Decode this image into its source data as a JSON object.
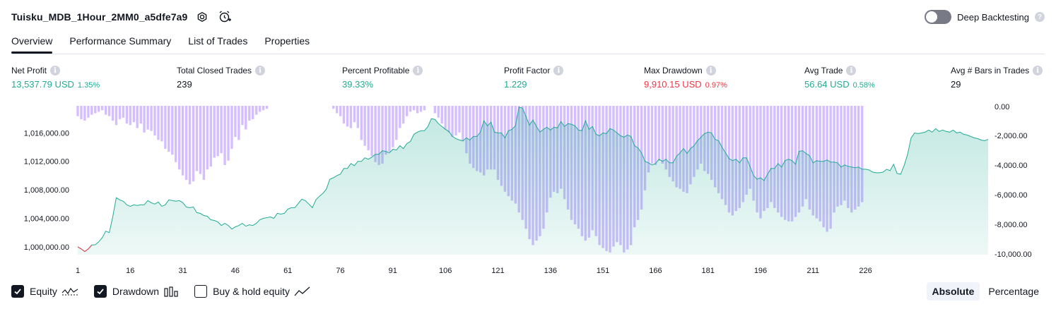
{
  "header": {
    "strategy_name": "Tuisku_MDB_1Hour_2MM0_a5dfe7a9",
    "settings_icon": "gear-icon",
    "alert_icon": "alarm-add-icon"
  },
  "deep_backtesting": {
    "label": "Deep Backtesting",
    "enabled": false,
    "help_icon": "question-icon"
  },
  "tabs": [
    {
      "label": "Overview",
      "active": true
    },
    {
      "label": "Performance Summary",
      "active": false
    },
    {
      "label": "List of Trades",
      "active": false
    },
    {
      "label": "Properties",
      "active": false
    }
  ],
  "metrics": [
    {
      "label": "Net Profit",
      "value": "13,537.79 USD",
      "pct": "1.35%",
      "color": "green"
    },
    {
      "label": "Total Closed Trades",
      "value": "239",
      "pct": "",
      "color": "neutral"
    },
    {
      "label": "Percent Profitable",
      "value": "39.33%",
      "pct": "",
      "color": "green"
    },
    {
      "label": "Profit Factor",
      "value": "1.229",
      "pct": "",
      "color": "green"
    },
    {
      "label": "Max Drawdown",
      "value": "9,910.15 USD",
      "pct": "0.97%",
      "color": "red"
    },
    {
      "label": "Avg Trade",
      "value": "56.64 USD",
      "pct": "0.58%",
      "color": "green"
    },
    {
      "label": "Avg # Bars in Trades",
      "value": "29",
      "pct": "",
      "color": "neutral"
    }
  ],
  "legend": {
    "equity": {
      "label": "Equity",
      "checked": true
    },
    "drawdown": {
      "label": "Drawdown",
      "checked": true
    },
    "buy_hold": {
      "label": "Buy & hold equity",
      "checked": false
    }
  },
  "view_mode": {
    "absolute": "Absolute",
    "percentage": "Percentage",
    "selected": "Absolute"
  },
  "chart_data": {
    "type": "area",
    "colors": {
      "equity": "#22ab94",
      "equity_loss": "#f23645",
      "drawdown": "#b388ff"
    },
    "x_ticks": [
      "1",
      "16",
      "31",
      "46",
      "61",
      "76",
      "91",
      "106",
      "121",
      "136",
      "151",
      "166",
      "181",
      "196",
      "211",
      "226"
    ],
    "y_left": {
      "ticks": [
        "1,016,000.00",
        "1,012,000.00",
        "1,008,000.00",
        "1,004,000.00",
        "1,000,000.00"
      ],
      "range": [
        999000,
        1019700
      ]
    },
    "y_right": {
      "ticks": [
        "0.00",
        "-2,000.00",
        "-4,000.00",
        "-6,000.00",
        "-8,000.00",
        "-10,000.00"
      ],
      "range": [
        -10000,
        0
      ]
    },
    "series": [
      {
        "name": "Equity",
        "type": "area",
        "x_start": 1,
        "values": [
          1000000,
          999700,
          999350,
          999700,
          1000250,
          1000300,
          1000700,
          1001300,
          1002200,
          1002000,
          1004200,
          1006900,
          1006600,
          1006400,
          1005900,
          1005700,
          1005900,
          1005800,
          1005900,
          1005900,
          1006500,
          1006200,
          1006000,
          1006300,
          1005700,
          1005900,
          1006600,
          1006500,
          1006400,
          1006500,
          1006200,
          1005600,
          1005500,
          1005600,
          1004800,
          1004700,
          1004400,
          1004300,
          1003800,
          1003700,
          1003500,
          1003000,
          1003300,
          1003000,
          1002500,
          1002800,
          1003000,
          1003300,
          1002900,
          1003100,
          1003000,
          1003300,
          1003800,
          1004000,
          1004100,
          1004200,
          1004000,
          1004700,
          1004600,
          1004700,
          1005300,
          1005500,
          1005500,
          1006100,
          1006700,
          1006500,
          1006000,
          1005500,
          1006600,
          1007100,
          1007500,
          1008100,
          1009500,
          1009700,
          1010000,
          1010200,
          1011000,
          1011000,
          1011700,
          1011400,
          1012000,
          1012000,
          1012500,
          1012300,
          1012600,
          1013000,
          1013000,
          1013500,
          1013400,
          1013200,
          1013700,
          1013600,
          1014200,
          1013800,
          1014500,
          1014800,
          1015800,
          1016100,
          1016300,
          1016300,
          1016900,
          1018000,
          1017900,
          1017300,
          1016900,
          1016500,
          1016200,
          1015500,
          1015200,
          1015000,
          1014900,
          1015300,
          1015000,
          1015500,
          1015500,
          1016100,
          1017700,
          1017000,
          1017500,
          1016100,
          1016000,
          1016000,
          1015300,
          1016300,
          1016500,
          1017000,
          1019600,
          1019500,
          1018300,
          1017100,
          1017800,
          1016900,
          1016100,
          1016500,
          1016800,
          1016400,
          1016800,
          1016700,
          1017600,
          1016900,
          1017300,
          1017200,
          1017000,
          1016400,
          1016300,
          1017700,
          1016500,
          1016900,
          1015800,
          1015600,
          1016000,
          1015900,
          1016600,
          1016400,
          1016000,
          1015600,
          1015400,
          1015700,
          1015500,
          1014200,
          1013900,
          1013200,
          1012000,
          1011800,
          1011500,
          1011700,
          1012300,
          1012000,
          1012300,
          1011800,
          1011800,
          1012700,
          1013200,
          1013800,
          1013100,
          1013800,
          1014200,
          1014900,
          1015400,
          1015900,
          1016100,
          1016000,
          1015100,
          1014900,
          1014000,
          1013200,
          1012400,
          1012100,
          1012300,
          1011800,
          1012500,
          1012500,
          1011300,
          1010000,
          1009500,
          1009700,
          1009300,
          1010200,
          1011000,
          1011000,
          1011700,
          1011200,
          1012100,
          1012300,
          1012100,
          1011600,
          1013400,
          1013500,
          1013100,
          1012800,
          1011800,
          1012100,
          1012000,
          1012000,
          1012200,
          1011900,
          1011900,
          1011800,
          1011200,
          1011500,
          1011300,
          1011200,
          1011100,
          1011200,
          1010900,
          1010900,
          1010800,
          1010500,
          1010400,
          1010400,
          1010500,
          1010900,
          1010700,
          1011600,
          1010300,
          1010200,
          1011400,
          1013000,
          1015300,
          1016000,
          1015900,
          1016000,
          1016100,
          1016400,
          1016100,
          1016600,
          1016200,
          1016400,
          1016200,
          1016100,
          1016400,
          1016000,
          1016100,
          1015800,
          1015700,
          1015500,
          1015300,
          1015200,
          1015000,
          1014900,
          1015100
        ]
      },
      {
        "name": "Drawdown",
        "type": "bar",
        "x_start": 1,
        "values": [
          -700,
          -900,
          -1000,
          -800,
          -600,
          -500,
          -400,
          -300,
          -600,
          -700,
          -1000,
          -1300,
          -900,
          -800,
          -1200,
          -1300,
          -1100,
          -1500,
          -1200,
          -1800,
          -1600,
          -1700,
          -2000,
          -2300,
          -2400,
          -2900,
          -3100,
          -3300,
          -3800,
          -4300,
          -4700,
          -5000,
          -5300,
          -5100,
          -4400,
          -4600,
          -5000,
          -4300,
          -4100,
          -3500,
          -3400,
          -3200,
          -4000,
          -3700,
          -2900,
          -2100,
          -2300,
          -1300,
          -1600,
          -1000,
          -900,
          -600,
          -400,
          -300,
          -200,
          0,
          0,
          0,
          0,
          0,
          0,
          0,
          0,
          0,
          0,
          0,
          0,
          0,
          0,
          0,
          0,
          0,
          0,
          -200,
          -500,
          -700,
          -1200,
          -1400,
          -1500,
          -1100,
          -1500,
          -2300,
          -2700,
          -3000,
          -3400,
          -3800,
          -4000,
          -3900,
          -3300,
          -3100,
          -2800,
          -2300,
          -1500,
          -1200,
          -700,
          -400,
          -300,
          -500,
          -400,
          -300,
          0,
          0,
          -500,
          -800,
          -1200,
          -1600,
          -1800,
          -2100,
          -2000,
          -1800,
          -2400,
          -3200,
          -3900,
          -4200,
          -4400,
          -4500,
          -4700,
          -4300,
          -4300,
          -4300,
          -5000,
          -5400,
          -5800,
          -6100,
          -6400,
          -6600,
          -7200,
          -7700,
          -8300,
          -9000,
          -9400,
          -9100,
          -8800,
          -8300,
          -7200,
          -6200,
          -5800,
          -5900,
          -5600,
          -6300,
          -7000,
          -7700,
          -8000,
          -8300,
          -8800,
          -9100,
          -8900,
          -8400,
          -8800,
          -9400,
          -9600,
          -9800,
          -9900,
          -9500,
          -9200,
          -9400,
          -9900,
          -9700,
          -9400,
          -8200,
          -7700,
          -7000,
          -5700,
          -4500,
          -3900,
          -4000,
          -3700,
          -3900,
          -4300,
          -4800,
          -5100,
          -5500,
          -5600,
          -5800,
          -5900,
          -5300,
          -4800,
          -4300,
          -3900,
          -4400,
          -4600,
          -5000,
          -5500,
          -5900,
          -6300,
          -6700,
          -7200,
          -7400,
          -7100,
          -6900,
          -6500,
          -6000,
          -5600,
          -6400,
          -7200,
          -7600,
          -7100,
          -6900,
          -6500,
          -6900,
          -7200,
          -7500,
          -7700,
          -7800,
          -7800,
          -7500,
          -7200,
          -6800,
          -6300,
          -7000,
          -7400,
          -7600,
          -7800,
          -8200,
          -8500,
          -8300,
          -7200,
          -6800,
          -6700,
          -6400,
          -6900,
          -7200,
          -7000,
          -6800,
          -6500
        ]
      }
    ]
  }
}
